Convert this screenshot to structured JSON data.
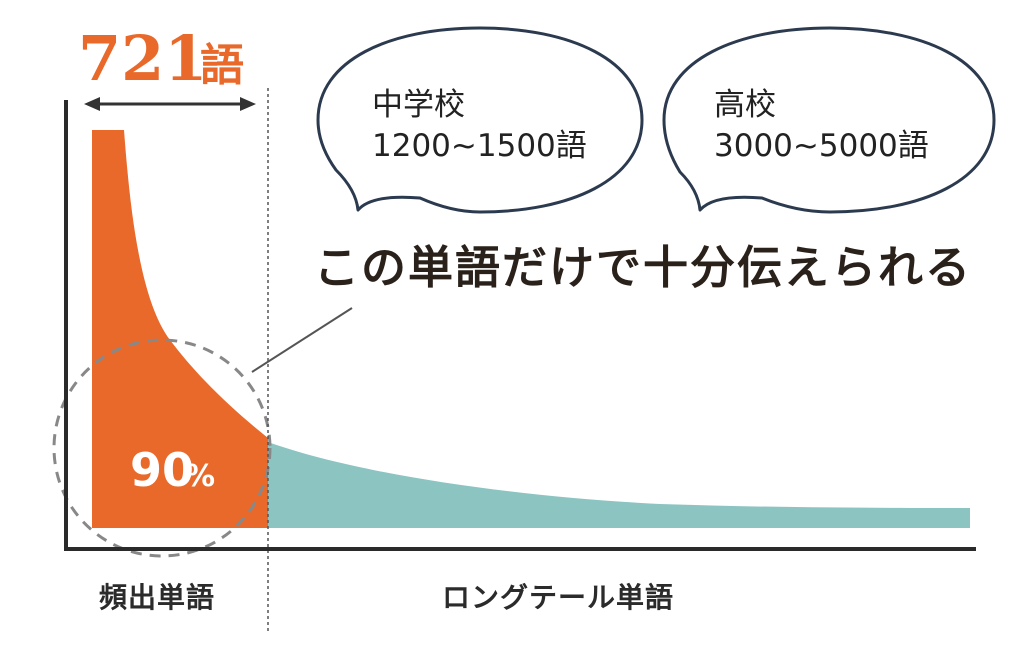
{
  "header": {
    "count_number": "721",
    "count_unit": "語"
  },
  "bubbles": [
    {
      "line1": "中学校",
      "line2": "1200~1500語"
    },
    {
      "line1": "高校",
      "line2": "3000~5000語"
    }
  ],
  "caption": "この単語だけで十分伝えられる",
  "percent": {
    "value": "90",
    "unit": "%"
  },
  "labels": {
    "frequent": "頻出単語",
    "long_tail": "ロングテール単語"
  },
  "colors": {
    "frequent": "#e8692a",
    "long_tail": "#8cc4c2",
    "bubble_stroke": "#2c3a4f"
  }
}
